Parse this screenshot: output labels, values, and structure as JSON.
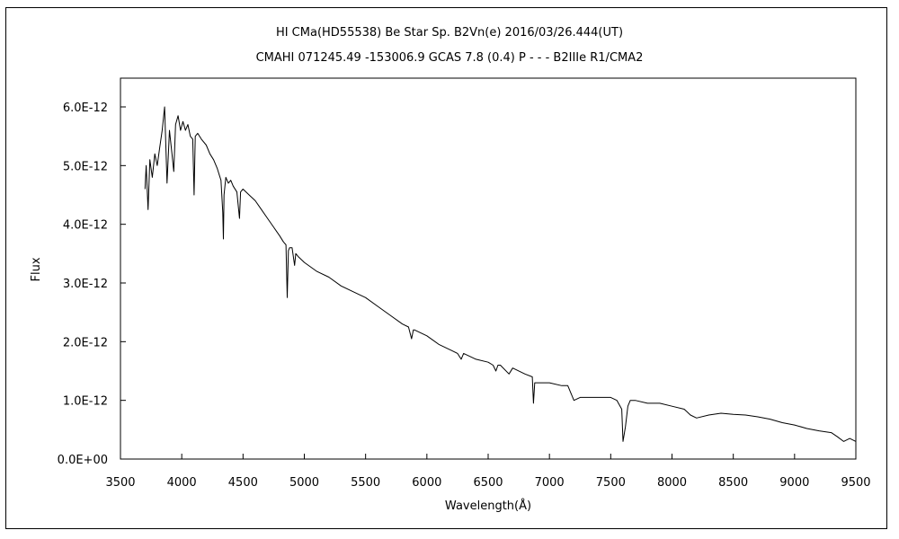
{
  "chart_data": {
    "type": "line",
    "title": "HI CMa(HD55538)    Be Star    Sp. B2Vn(e)    2016/03/26.444(UT)",
    "subtitle": "CMAHI 071245.49 -153006.9 GCAS 7.8 (0.4) P - - - B2IIIe R1/CMA2",
    "xlabel": "Wavelength(Å)",
    "ylabel": "Flux",
    "xlim": [
      3500,
      9500
    ],
    "ylim": [
      0,
      6e-12
    ],
    "ylim_display_top": 6e-12,
    "x_ticks": [
      3500,
      4000,
      4500,
      5000,
      5500,
      6000,
      6500,
      7000,
      7500,
      8000,
      8500,
      9000,
      9500
    ],
    "x_tick_labels": [
      "3500",
      "4000",
      "4500",
      "5000",
      "5500",
      "6000",
      "6500",
      "7000",
      "7500",
      "8000",
      "8500",
      "9000",
      "9500"
    ],
    "y_ticks": [
      0,
      1e-12,
      2e-12,
      3e-12,
      4e-12,
      5e-12,
      6e-12
    ],
    "y_tick_labels": [
      "0.0E+00",
      "1.0E-12",
      "2.0E-12",
      "3.0E-12",
      "4.0E-12",
      "5.0E-12",
      "6.0E-12"
    ],
    "grid": false,
    "series": [
      {
        "color": "#000000",
        "x": [
          3700,
          3710,
          3725,
          3740,
          3760,
          3780,
          3800,
          3820,
          3840,
          3860,
          3880,
          3900,
          3920,
          3935,
          3950,
          3970,
          3990,
          4010,
          4030,
          4050,
          4070,
          4090,
          4101,
          4110,
          4130,
          4160,
          4200,
          4230,
          4260,
          4290,
          4320,
          4335,
          4340,
          4345,
          4360,
          4380,
          4400,
          4420,
          4450,
          4471,
          4480,
          4500,
          4550,
          4600,
          4650,
          4700,
          4750,
          4800,
          4830,
          4850,
          4861,
          4870,
          4880,
          4900,
          4921,
          4930,
          4950,
          5000,
          5100,
          5200,
          5300,
          5400,
          5500,
          5600,
          5700,
          5800,
          5850,
          5875,
          5890,
          5900,
          6000,
          6100,
          6200,
          6250,
          6280,
          6300,
          6400,
          6500,
          6540,
          6563,
          6580,
          6600,
          6670,
          6700,
          6800,
          6860,
          6870,
          6880,
          6900,
          7000,
          7100,
          7150,
          7200,
          7250,
          7300,
          7400,
          7500,
          7550,
          7590,
          7600,
          7620,
          7640,
          7660,
          7700,
          7800,
          7900,
          8000,
          8100,
          8150,
          8200,
          8300,
          8400,
          8500,
          8600,
          8700,
          8800,
          8900,
          9000,
          9100,
          9200,
          9300,
          9350,
          9400,
          9450,
          9500
        ],
        "y": [
          4.6e-12,
          5e-12,
          4.25e-12,
          5.1e-12,
          4.8e-12,
          5.2e-12,
          5e-12,
          5.3e-12,
          5.6e-12,
          6e-12,
          4.7e-12,
          5.6e-12,
          5.2e-12,
          4.9e-12,
          5.7e-12,
          5.85e-12,
          5.6e-12,
          5.75e-12,
          5.6e-12,
          5.7e-12,
          5.5e-12,
          5.45e-12,
          4.5e-12,
          5.5e-12,
          5.55e-12,
          5.45e-12,
          5.35e-12,
          5.2e-12,
          5.1e-12,
          4.95e-12,
          4.75e-12,
          4.2e-12,
          3.75e-12,
          4.5e-12,
          4.8e-12,
          4.7e-12,
          4.75e-12,
          4.65e-12,
          4.55e-12,
          4.1e-12,
          4.55e-12,
          4.6e-12,
          4.5e-12,
          4.4e-12,
          4.25e-12,
          4.1e-12,
          3.95e-12,
          3.8e-12,
          3.7e-12,
          3.65e-12,
          2.75e-12,
          3.55e-12,
          3.6e-12,
          3.6e-12,
          3.3e-12,
          3.5e-12,
          3.45e-12,
          3.35e-12,
          3.2e-12,
          3.1e-12,
          2.95e-12,
          2.85e-12,
          2.75e-12,
          2.6e-12,
          2.45e-12,
          2.3e-12,
          2.25e-12,
          2.05e-12,
          2.2e-12,
          2.2e-12,
          2.1e-12,
          1.95e-12,
          1.85e-12,
          1.8e-12,
          1.7e-12,
          1.8e-12,
          1.7e-12,
          1.65e-12,
          1.6e-12,
          1.5e-12,
          1.6e-12,
          1.6e-12,
          1.45e-12,
          1.55e-12,
          1.45e-12,
          1.4e-12,
          9.5e-13,
          1.3e-12,
          1.3e-12,
          1.3e-12,
          1.25e-12,
          1.25e-12,
          1e-12,
          1.05e-12,
          1.05e-12,
          1.05e-12,
          1.05e-12,
          1e-12,
          8.5e-13,
          3e-13,
          5.5e-13,
          9e-13,
          1e-12,
          1e-12,
          9.5e-13,
          9.5e-13,
          9e-13,
          8.5e-13,
          7.5e-13,
          7e-13,
          7.5e-13,
          7.8e-13,
          7.6e-13,
          7.5e-13,
          7.2e-13,
          6.8e-13,
          6.2e-13,
          5.8e-13,
          5.2e-13,
          4.8e-13,
          4.5e-13,
          3.8e-13,
          3e-13,
          3.5e-13,
          3e-13
        ]
      }
    ]
  }
}
